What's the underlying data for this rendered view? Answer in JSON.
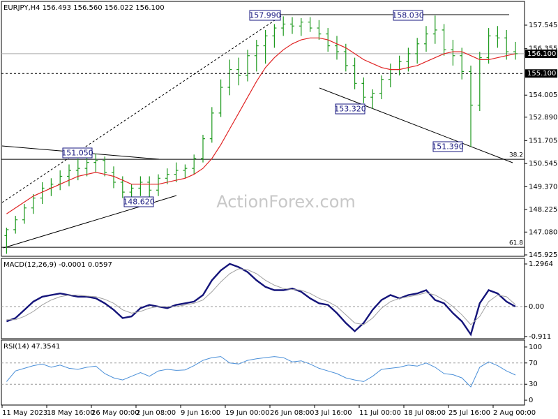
{
  "chart_data": [
    {
      "type": "ohlc",
      "title": "EURJPY,H4  156.493 156.560 156.022 156.100",
      "color": "#1e9a1e",
      "categories": [
        "11 May 2023",
        null,
        null,
        null,
        null,
        "18 May 16:00",
        null,
        null,
        null,
        null,
        "26 May 00:00",
        null,
        null,
        null,
        null,
        "2 Jun 08:00",
        null,
        null,
        null,
        null,
        "9 Jun 16:00",
        null,
        null,
        null,
        null,
        "19 Jun 00:00",
        null,
        null,
        null,
        null,
        "26 Jun 08:00",
        null,
        null,
        null,
        null,
        "3 Jul 16:00",
        null,
        null,
        null,
        null,
        "11 Jul 00:00",
        null,
        null,
        null,
        null,
        "18 Jul 08:00",
        null,
        null,
        null,
        null,
        "25 Jul 16:00",
        null,
        null,
        null,
        null,
        "2 Aug 00:00",
        null,
        null
      ],
      "ohlc": {
        "open": [
          146.9,
          147.2,
          147.7,
          148.3,
          148.8,
          149.3,
          149.5,
          149.9,
          150.2,
          150.3,
          150.6,
          150.7,
          150.1,
          149.6,
          149.1,
          149.3,
          149.6,
          149.2,
          149.8,
          150.0,
          150.2,
          150.3,
          150.8,
          151.8,
          153.1,
          154.4,
          155.3,
          155.0,
          156.0,
          156.5,
          157.0,
          157.4,
          157.6,
          157.5,
          157.7,
          157.4,
          157.1,
          156.5,
          156.2,
          155.5,
          154.6,
          153.9,
          154.1,
          154.8,
          155.3,
          155.7,
          156.1,
          156.6,
          157.1,
          157.3,
          156.3,
          156.0,
          155.2,
          153.5,
          155.9,
          157.0,
          156.9,
          156.2
        ],
        "high": [
          147.3,
          147.9,
          148.5,
          149.0,
          149.6,
          149.8,
          150.2,
          150.5,
          150.8,
          150.9,
          151.05,
          150.9,
          150.4,
          149.9,
          149.5,
          149.9,
          149.9,
          150.0,
          150.3,
          150.6,
          150.5,
          151.0,
          152.0,
          153.4,
          154.8,
          155.8,
          155.9,
          156.3,
          156.8,
          157.3,
          157.6,
          157.99,
          157.95,
          157.9,
          157.95,
          157.8,
          157.4,
          157.0,
          156.6,
          155.9,
          154.9,
          154.3,
          155.0,
          155.6,
          156.0,
          156.4,
          156.9,
          157.5,
          158.03,
          157.6,
          156.8,
          156.4,
          155.5,
          156.2,
          157.4,
          157.5,
          157.3,
          156.7
        ],
        "low": [
          145.98,
          147.0,
          147.5,
          148.0,
          148.5,
          148.9,
          149.2,
          149.4,
          149.7,
          149.9,
          150.1,
          149.9,
          149.3,
          148.8,
          148.62,
          148.9,
          148.8,
          148.9,
          149.5,
          149.6,
          149.8,
          150.0,
          150.6,
          151.6,
          152.9,
          154.0,
          154.5,
          154.7,
          155.2,
          155.6,
          156.4,
          157.0,
          157.1,
          157.0,
          157.2,
          156.8,
          156.2,
          155.8,
          155.2,
          154.3,
          153.6,
          153.32,
          153.8,
          154.4,
          155.0,
          155.2,
          155.6,
          156.2,
          156.6,
          156.0,
          155.5,
          154.8,
          151.39,
          153.2,
          155.6,
          156.4,
          155.8,
          155.8
        ],
        "close": [
          147.2,
          147.7,
          148.3,
          148.8,
          149.3,
          149.5,
          149.9,
          150.2,
          150.3,
          150.6,
          150.7,
          150.1,
          149.6,
          149.1,
          149.3,
          149.6,
          149.2,
          149.8,
          150.0,
          150.2,
          150.3,
          150.8,
          151.8,
          153.1,
          154.4,
          155.3,
          155.0,
          156.0,
          156.5,
          157.0,
          157.4,
          157.6,
          157.5,
          157.7,
          157.4,
          157.1,
          156.5,
          156.2,
          155.5,
          154.6,
          153.9,
          154.1,
          154.8,
          155.3,
          155.7,
          156.1,
          156.6,
          157.1,
          157.3,
          156.3,
          156.0,
          155.2,
          153.5,
          155.9,
          157.0,
          156.9,
          156.2,
          156.1
        ]
      },
      "overlays": [
        {
          "color": "#e02424",
          "values": [
            148.0,
            148.3,
            148.6,
            148.9,
            149.1,
            149.3,
            149.5,
            149.7,
            149.9,
            150.0,
            150.1,
            150.0,
            149.9,
            149.7,
            149.5,
            149.5,
            149.5,
            149.5,
            149.6,
            149.7,
            149.8,
            150.0,
            150.3,
            150.8,
            151.5,
            152.3,
            153.1,
            153.9,
            154.7,
            155.4,
            155.9,
            156.3,
            156.6,
            156.8,
            156.9,
            156.9,
            156.8,
            156.6,
            156.4,
            156.1,
            155.8,
            155.6,
            155.4,
            155.3,
            155.3,
            155.4,
            155.5,
            155.7,
            155.9,
            156.1,
            156.2,
            156.2,
            156.0,
            155.8,
            155.8,
            155.9,
            156.0,
            156.1
          ]
        }
      ],
      "ylim": [
        145.925,
        158.64
      ],
      "yticks": [
        157.545,
        156.355,
        154.005,
        {
          "value": 152.89,
          "label": "152.890"
        },
        151.705,
        150.545,
        {
          "value": 149.37,
          "label": "149.370"
        },
        148.225,
        {
          "value": 147.08,
          "label": "147.080"
        },
        145.925
      ],
      "grid": false,
      "current_price": {
        "value": 156.1,
        "label": "156.100"
      },
      "hline": {
        "value": 155.1,
        "label": "155.100"
      },
      "fib_levels": [
        {
          "value": 150.76,
          "label": "38.2"
        },
        {
          "value": 146.31,
          "label": "61.8"
        }
      ],
      "annotations": [
        "157.990",
        "158.030",
        "153.320",
        "151.390",
        "151.050",
        "148.620"
      ],
      "watermark": "ActionForex.com"
    },
    {
      "type": "line",
      "title": "MACD(12,26,9) -0.0001 0.0597",
      "series": [
        {
          "color": "#14147a",
          "values": [
            -0.45,
            -0.35,
            -0.1,
            0.15,
            0.3,
            0.35,
            0.4,
            0.35,
            0.3,
            0.3,
            0.25,
            0.1,
            -0.1,
            -0.35,
            -0.3,
            -0.05,
            0.05,
            0.0,
            -0.05,
            0.05,
            0.1,
            0.15,
            0.35,
            0.8,
            1.1,
            1.3,
            1.2,
            1.05,
            0.8,
            0.6,
            0.5,
            0.5,
            0.55,
            0.45,
            0.25,
            0.1,
            0.05,
            -0.2,
            -0.5,
            -0.75,
            -0.5,
            -0.1,
            0.2,
            0.35,
            0.25,
            0.35,
            0.4,
            0.5,
            0.2,
            0.1,
            -0.2,
            -0.45,
            -0.85,
            0.1,
            0.5,
            0.4,
            0.15,
            0.0
          ]
        },
        {
          "color": "#a0a0a0",
          "values": [
            -0.4,
            -0.4,
            -0.3,
            -0.15,
            0.05,
            0.2,
            0.3,
            0.35,
            0.35,
            0.32,
            0.3,
            0.22,
            0.1,
            -0.1,
            -0.2,
            -0.15,
            -0.05,
            0.0,
            0.0,
            0.0,
            0.05,
            0.1,
            0.2,
            0.45,
            0.75,
            1.0,
            1.15,
            1.12,
            1.0,
            0.8,
            0.65,
            0.55,
            0.52,
            0.5,
            0.4,
            0.25,
            0.15,
            0.0,
            -0.25,
            -0.5,
            -0.55,
            -0.35,
            -0.05,
            0.15,
            0.25,
            0.3,
            0.35,
            0.42,
            0.35,
            0.2,
            0.0,
            -0.25,
            -0.55,
            -0.3,
            0.15,
            0.35,
            0.3,
            0.06
          ]
        }
      ],
      "ylim": [
        -0.978,
        1.424
      ],
      "yticks": [
        1.2964,
        {
          "value": 0,
          "label": "0.00"
        },
        -0.911
      ],
      "grid": true
    },
    {
      "type": "line",
      "title": "RSI(14) 47.3541",
      "series": [
        {
          "color": "#4a8fd8",
          "values": [
            35,
            55,
            60,
            65,
            68,
            62,
            66,
            60,
            58,
            62,
            64,
            50,
            42,
            38,
            45,
            52,
            45,
            55,
            58,
            56,
            57,
            65,
            75,
            80,
            82,
            70,
            68,
            75,
            78,
            80,
            82,
            80,
            72,
            74,
            68,
            60,
            55,
            50,
            42,
            38,
            35,
            45,
            58,
            60,
            62,
            66,
            64,
            70,
            62,
            50,
            48,
            42,
            25,
            62,
            72,
            65,
            55,
            47.35
          ]
        }
      ],
      "ylim": [
        -9.1,
        110.4
      ],
      "yticks": [
        100,
        70,
        30,
        0
      ],
      "grid": true
    }
  ]
}
